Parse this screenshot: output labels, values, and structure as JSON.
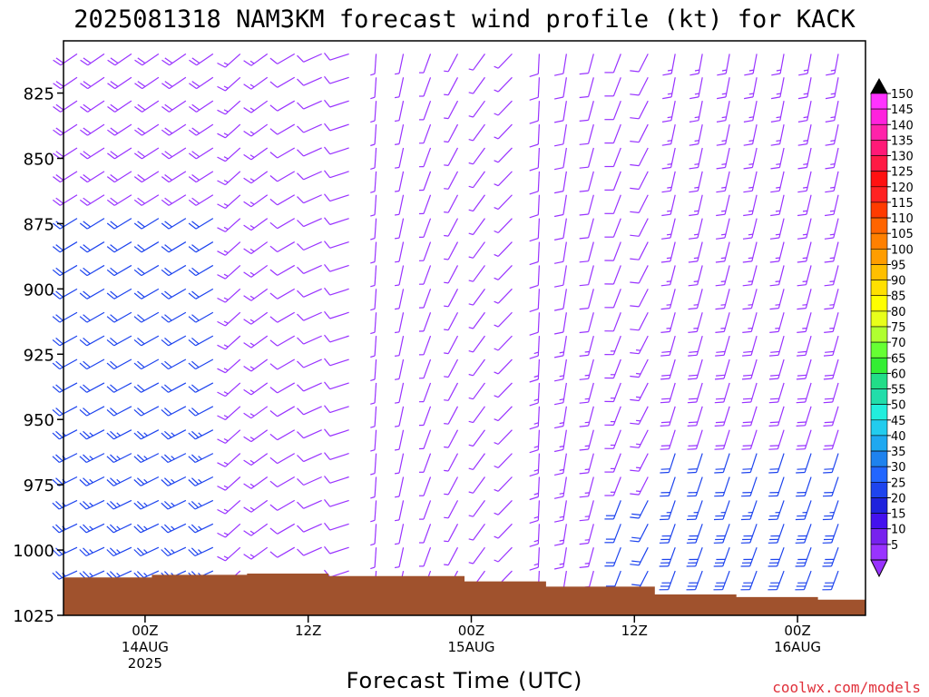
{
  "chart_data": {
    "type": "wind-barb-profile",
    "title": "2025081318 NAM3KM forecast wind profile (kt) for KACK",
    "xlabel": "Forecast Time (UTC)",
    "credit": "coolwx.com/models",
    "y_axis": {
      "label": "",
      "ticks": [
        "825",
        "850",
        "875",
        "900",
        "925",
        "950",
        "975",
        "1000",
        "1025"
      ],
      "ylim": [
        1025,
        805
      ]
    },
    "x_axis": {
      "ticks": [
        {
          "hour": 6,
          "l1": "00Z",
          "l2": "14AUG",
          "l3": "2025"
        },
        {
          "hour": 18,
          "l1": "12Z",
          "l2": "",
          "l3": ""
        },
        {
          "hour": 30,
          "l1": "00Z",
          "l2": "15AUG",
          "l3": ""
        },
        {
          "hour": 42,
          "l1": "12Z",
          "l2": "",
          "l3": ""
        },
        {
          "hour": 54,
          "l1": "00Z",
          "l2": "16AUG",
          "l3": ""
        }
      ],
      "xlim": [
        0,
        59
      ]
    },
    "colorbar": {
      "values": [
        150,
        145,
        140,
        135,
        130,
        125,
        120,
        115,
        110,
        105,
        100,
        95,
        90,
        85,
        80,
        75,
        70,
        65,
        60,
        55,
        50,
        45,
        40,
        35,
        30,
        25,
        20,
        15,
        10,
        5
      ],
      "colors": [
        "#ff33ff",
        "#ff22dd",
        "#ff22aa",
        "#ff1a77",
        "#ff1a44",
        "#ff1111",
        "#ff2222",
        "#ff3b00",
        "#ff6400",
        "#ff8000",
        "#ff9d00",
        "#ffbf00",
        "#ffe000",
        "#ffff00",
        "#e8ff1a",
        "#b0ff30",
        "#66ff33",
        "#33ee33",
        "#22dd88",
        "#22ddaa",
        "#22eedd",
        "#22ccee",
        "#1ea8f0",
        "#1e82ee",
        "#2266ff",
        "#1e44ee",
        "#1e22dd",
        "#4411ee",
        "#7722ee",
        "#9933ff"
      ]
    },
    "terrain_color": "#a0522d",
    "barb_color_light": "#9933ff",
    "barb_color_strong": "#1e44ee"
  }
}
